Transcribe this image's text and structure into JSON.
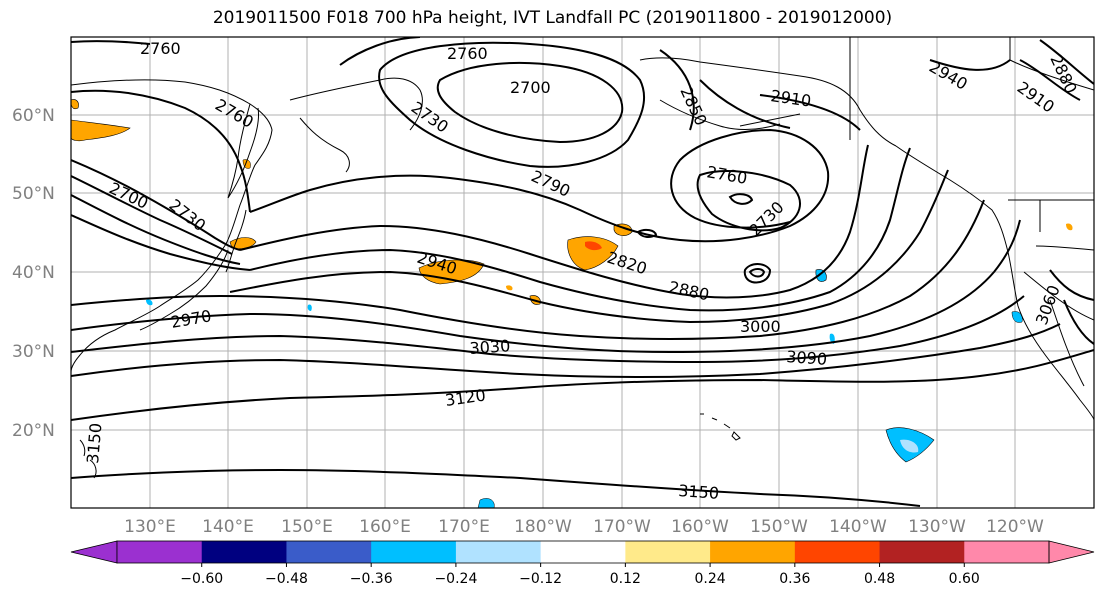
{
  "title": "2019011500 F018 700 hPa height, IVT Landfall PC (2019011800 - 2019012000)",
  "longitude_labels": [
    "130°E",
    "140°E",
    "150°E",
    "160°E",
    "170°E",
    "180°W",
    "170°W",
    "160°W",
    "150°W",
    "140°W",
    "130°W",
    "120°W"
  ],
  "latitude_labels": [
    "60°N",
    "50°N",
    "40°N",
    "30°N",
    "20°N"
  ],
  "contour_labels": [
    "2760",
    "2760",
    "2760",
    "2700",
    "2730",
    "2850",
    "2910",
    "2940",
    "2910",
    "2880",
    "2700",
    "2730",
    "2790",
    "2760",
    "2730",
    "2940",
    "2820",
    "2880",
    "3000",
    "2970",
    "3030",
    "3090",
    "3120",
    "3150",
    "3150",
    "3060"
  ],
  "colorbar": {
    "ticks": [
      "−0.60",
      "−0.48",
      "−0.36",
      "−0.24",
      "−0.12",
      "0.12",
      "0.24",
      "0.36",
      "0.48",
      "0.60"
    ],
    "colors": [
      "#9b30d0",
      "#000080",
      "#3a5cc9",
      "#00bfff",
      "#b0e2ff",
      "#ffffff",
      "#ffea8a",
      "#ffa500",
      "#ff4500",
      "#b22222",
      "#ff88aa",
      "#ff88aa"
    ]
  }
}
